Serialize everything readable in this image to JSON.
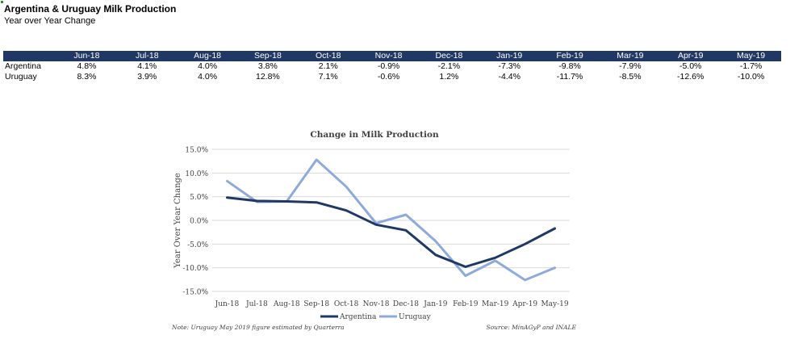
{
  "header": {
    "title": "Argentina & Uruguay Milk Production",
    "subtitle": "Year over Year Change"
  },
  "table": {
    "columns": [
      "Jun-18",
      "Jul-18",
      "Aug-18",
      "Sep-18",
      "Oct-18",
      "Nov-18",
      "Dec-18",
      "Jan-19",
      "Feb-19",
      "Mar-19",
      "Apr-19",
      "May-19"
    ],
    "rows": [
      {
        "label": "Argentina",
        "values": [
          "4.8%",
          "4.1%",
          "4.0%",
          "3.8%",
          "2.1%",
          "-0.9%",
          "-2.1%",
          "-7.3%",
          "-9.8%",
          "-7.9%",
          "-5.0%",
          "-1.7%"
        ]
      },
      {
        "label": "Uruguay",
        "values": [
          "8.3%",
          "3.9%",
          "4.0%",
          "12.8%",
          "7.1%",
          "-0.6%",
          "1.2%",
          "-4.4%",
          "-11.7%",
          "-8.5%",
          "-12.6%",
          "-10.0%"
        ]
      }
    ]
  },
  "chart_data": {
    "type": "line",
    "title": "Change in Milk Production",
    "xlabel": "",
    "ylabel": "Year Over Year Change",
    "categories": [
      "Jun-18",
      "Jul-18",
      "Aug-18",
      "Sep-18",
      "Oct-18",
      "Nov-18",
      "Dec-18",
      "Jan-19",
      "Feb-19",
      "Mar-19",
      "Apr-19",
      "May-19"
    ],
    "ylim": [
      -15,
      15
    ],
    "yticks": [
      15,
      10,
      5,
      0,
      -5,
      -10,
      -15
    ],
    "ytick_labels": [
      "15.0%",
      "10.0%",
      "5.0%",
      "0.0%",
      "-5.0%",
      "-10.0%",
      "-15.0%"
    ],
    "grid": true,
    "legend_position": "bottom",
    "series": [
      {
        "name": "Argentina",
        "color": "#1f3864",
        "values": [
          4.8,
          4.1,
          4.0,
          3.8,
          2.1,
          -0.9,
          -2.1,
          -7.3,
          -9.8,
          -7.9,
          -5.0,
          -1.7
        ]
      },
      {
        "name": "Uruguay",
        "color": "#8eaadb",
        "values": [
          8.3,
          3.9,
          4.0,
          12.8,
          7.1,
          -0.6,
          1.2,
          -4.4,
          -11.7,
          -8.5,
          -12.6,
          -10.0
        ]
      }
    ],
    "note": "Note: Uruguay May 2019 figure estimated by Quarterra",
    "source": "Source: MinAGyP and INALE"
  }
}
